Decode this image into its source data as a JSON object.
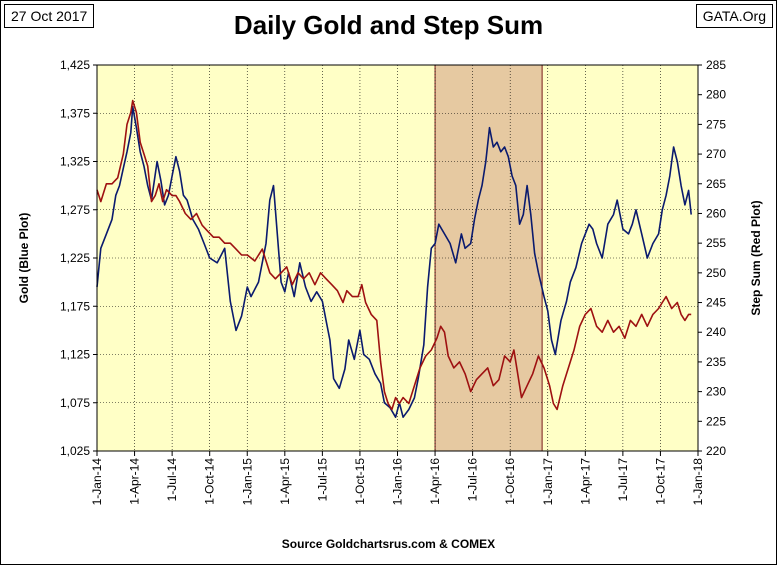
{
  "header": {
    "date": "27 Oct 2017",
    "brand": "GATA.Org",
    "title": "Daily Gold and Step Sum",
    "source": "Source Goldchartsrus.com & COMEX"
  },
  "colors": {
    "plot_bg": "#ffffc6",
    "highlight": "#e6c9a1",
    "gold_line": "#0a1a6e",
    "step_line": "#9e1111",
    "grid": "#000000"
  },
  "chart_data": {
    "type": "line",
    "title": "Daily Gold and Step Sum",
    "x_tick_labels": [
      "1-Jan-14",
      "1-Apr-14",
      "1-Jul-14",
      "1-Oct-14",
      "1-Jan-15",
      "1-Apr-15",
      "1-Jul-15",
      "1-Oct-15",
      "1-Jan-16",
      "1-Apr-16",
      "1-Jul-16",
      "1-Oct-16",
      "1-Jan-17",
      "1-Apr-17",
      "1-Jul-17",
      "1-Oct-17",
      "1-Jan-18"
    ],
    "x_range": [
      0,
      16
    ],
    "y_left": {
      "label": "Gold   (Blue Plot)",
      "range": [
        1025,
        1425
      ],
      "ticks": [
        1025,
        1075,
        1125,
        1175,
        1225,
        1275,
        1325,
        1375,
        1425
      ],
      "tick_labels": [
        "1,025",
        "1,075",
        "1,125",
        "1,175",
        "1,225",
        "1,275",
        "1,325",
        "1,375",
        "1,425"
      ]
    },
    "y_right": {
      "label": "Step Sum   (Red Plot)",
      "range": [
        220,
        285
      ],
      "ticks": [
        220,
        225,
        230,
        235,
        240,
        245,
        250,
        255,
        260,
        265,
        270,
        275,
        280,
        285
      ],
      "tick_labels": [
        "220",
        "225",
        "230",
        "235",
        "240",
        "245",
        "250",
        "255",
        "260",
        "265",
        "270",
        "275",
        "280",
        "285"
      ]
    },
    "highlight_x_range": [
      9.0,
      11.85
    ],
    "series": [
      {
        "name": "Gold",
        "axis": "left",
        "points": [
          [
            0,
            1195
          ],
          [
            0.1,
            1235
          ],
          [
            0.25,
            1250
          ],
          [
            0.4,
            1265
          ],
          [
            0.5,
            1290
          ],
          [
            0.6,
            1300
          ],
          [
            0.7,
            1318
          ],
          [
            0.8,
            1335
          ],
          [
            0.9,
            1355
          ],
          [
            0.95,
            1382
          ],
          [
            1.05,
            1360
          ],
          [
            1.15,
            1335
          ],
          [
            1.25,
            1320
          ],
          [
            1.35,
            1300
          ],
          [
            1.45,
            1285
          ],
          [
            1.6,
            1325
          ],
          [
            1.7,
            1305
          ],
          [
            1.8,
            1280
          ],
          [
            1.9,
            1290
          ],
          [
            2.0,
            1310
          ],
          [
            2.1,
            1330
          ],
          [
            2.2,
            1315
          ],
          [
            2.3,
            1290
          ],
          [
            2.4,
            1285
          ],
          [
            2.55,
            1265
          ],
          [
            2.7,
            1255
          ],
          [
            2.85,
            1240
          ],
          [
            3.0,
            1225
          ],
          [
            3.2,
            1220
          ],
          [
            3.4,
            1235
          ],
          [
            3.55,
            1180
          ],
          [
            3.7,
            1150
          ],
          [
            3.85,
            1165
          ],
          [
            4.0,
            1195
          ],
          [
            4.1,
            1185
          ],
          [
            4.3,
            1200
          ],
          [
            4.5,
            1240
          ],
          [
            4.6,
            1285
          ],
          [
            4.7,
            1300
          ],
          [
            4.8,
            1250
          ],
          [
            4.9,
            1200
          ],
          [
            5.0,
            1190
          ],
          [
            5.1,
            1210
          ],
          [
            5.25,
            1185
          ],
          [
            5.4,
            1220
          ],
          [
            5.55,
            1195
          ],
          [
            5.7,
            1180
          ],
          [
            5.85,
            1190
          ],
          [
            6.0,
            1180
          ],
          [
            6.1,
            1160
          ],
          [
            6.2,
            1140
          ],
          [
            6.3,
            1100
          ],
          [
            6.45,
            1090
          ],
          [
            6.6,
            1110
          ],
          [
            6.7,
            1140
          ],
          [
            6.85,
            1120
          ],
          [
            7.0,
            1150
          ],
          [
            7.1,
            1125
          ],
          [
            7.25,
            1120
          ],
          [
            7.4,
            1105
          ],
          [
            7.55,
            1095
          ],
          [
            7.65,
            1075
          ],
          [
            7.8,
            1070
          ],
          [
            7.95,
            1060
          ],
          [
            8.05,
            1075
          ],
          [
            8.15,
            1060
          ],
          [
            8.3,
            1068
          ],
          [
            8.45,
            1080
          ],
          [
            8.55,
            1100
          ],
          [
            8.7,
            1135
          ],
          [
            8.8,
            1195
          ],
          [
            8.9,
            1235
          ],
          [
            9.0,
            1240
          ],
          [
            9.1,
            1260
          ],
          [
            9.25,
            1250
          ],
          [
            9.4,
            1240
          ],
          [
            9.55,
            1220
          ],
          [
            9.7,
            1250
          ],
          [
            9.8,
            1235
          ],
          [
            9.95,
            1240
          ],
          [
            10.05,
            1265
          ],
          [
            10.15,
            1285
          ],
          [
            10.25,
            1300
          ],
          [
            10.35,
            1325
          ],
          [
            10.45,
            1360
          ],
          [
            10.55,
            1340
          ],
          [
            10.65,
            1345
          ],
          [
            10.75,
            1335
          ],
          [
            10.85,
            1340
          ],
          [
            10.95,
            1330
          ],
          [
            11.05,
            1310
          ],
          [
            11.15,
            1300
          ],
          [
            11.25,
            1260
          ],
          [
            11.35,
            1270
          ],
          [
            11.45,
            1300
          ],
          [
            11.55,
            1270
          ],
          [
            11.65,
            1230
          ],
          [
            11.75,
            1210
          ],
          [
            11.9,
            1185
          ],
          [
            12.0,
            1170
          ],
          [
            12.1,
            1140
          ],
          [
            12.2,
            1125
          ],
          [
            12.35,
            1160
          ],
          [
            12.5,
            1180
          ],
          [
            12.6,
            1200
          ],
          [
            12.75,
            1215
          ],
          [
            12.9,
            1240
          ],
          [
            13.0,
            1250
          ],
          [
            13.1,
            1260
          ],
          [
            13.2,
            1255
          ],
          [
            13.3,
            1240
          ],
          [
            13.45,
            1225
          ],
          [
            13.6,
            1260
          ],
          [
            13.75,
            1270
          ],
          [
            13.85,
            1285
          ],
          [
            14.0,
            1255
          ],
          [
            14.15,
            1250
          ],
          [
            14.25,
            1260
          ],
          [
            14.35,
            1275
          ],
          [
            14.5,
            1250
          ],
          [
            14.65,
            1225
          ],
          [
            14.8,
            1240
          ],
          [
            14.95,
            1250
          ],
          [
            15.05,
            1275
          ],
          [
            15.15,
            1290
          ],
          [
            15.25,
            1310
          ],
          [
            15.35,
            1340
          ],
          [
            15.45,
            1325
          ],
          [
            15.55,
            1300
          ],
          [
            15.65,
            1280
          ],
          [
            15.75,
            1295
          ],
          [
            15.82,
            1270
          ]
        ]
      },
      {
        "name": "Step Sum",
        "axis": "right",
        "points": [
          [
            0,
            264
          ],
          [
            0.1,
            262
          ],
          [
            0.25,
            265
          ],
          [
            0.4,
            265
          ],
          [
            0.55,
            266
          ],
          [
            0.7,
            270
          ],
          [
            0.8,
            275
          ],
          [
            0.9,
            277
          ],
          [
            0.95,
            279
          ],
          [
            1.05,
            277
          ],
          [
            1.15,
            272
          ],
          [
            1.25,
            270
          ],
          [
            1.35,
            268
          ],
          [
            1.45,
            262
          ],
          [
            1.55,
            263
          ],
          [
            1.65,
            265
          ],
          [
            1.75,
            262
          ],
          [
            1.85,
            264
          ],
          [
            2.0,
            263
          ],
          [
            2.1,
            263
          ],
          [
            2.2,
            262
          ],
          [
            2.35,
            260
          ],
          [
            2.5,
            259
          ],
          [
            2.65,
            260
          ],
          [
            2.8,
            258
          ],
          [
            2.95,
            257
          ],
          [
            3.1,
            256
          ],
          [
            3.25,
            256
          ],
          [
            3.4,
            255
          ],
          [
            3.55,
            255
          ],
          [
            3.7,
            254
          ],
          [
            3.85,
            253
          ],
          [
            4.0,
            253
          ],
          [
            4.2,
            252
          ],
          [
            4.4,
            254
          ],
          [
            4.6,
            250
          ],
          [
            4.75,
            249
          ],
          [
            4.9,
            250
          ],
          [
            5.05,
            251
          ],
          [
            5.2,
            248
          ],
          [
            5.35,
            250
          ],
          [
            5.5,
            249
          ],
          [
            5.65,
            250
          ],
          [
            5.8,
            248
          ],
          [
            5.95,
            250
          ],
          [
            6.1,
            249
          ],
          [
            6.25,
            248
          ],
          [
            6.4,
            247
          ],
          [
            6.55,
            245
          ],
          [
            6.65,
            247
          ],
          [
            6.8,
            246
          ],
          [
            6.95,
            246
          ],
          [
            7.05,
            248
          ],
          [
            7.15,
            245
          ],
          [
            7.3,
            243
          ],
          [
            7.45,
            242
          ],
          [
            7.55,
            235
          ],
          [
            7.65,
            230
          ],
          [
            7.75,
            228
          ],
          [
            7.85,
            227
          ],
          [
            7.95,
            229
          ],
          [
            8.05,
            228
          ],
          [
            8.15,
            229
          ],
          [
            8.3,
            228
          ],
          [
            8.45,
            231
          ],
          [
            8.6,
            234
          ],
          [
            8.75,
            236
          ],
          [
            8.9,
            237
          ],
          [
            9.05,
            239
          ],
          [
            9.15,
            241
          ],
          [
            9.25,
            240
          ],
          [
            9.35,
            236
          ],
          [
            9.5,
            234
          ],
          [
            9.65,
            235
          ],
          [
            9.8,
            233
          ],
          [
            9.95,
            230
          ],
          [
            10.1,
            232
          ],
          [
            10.25,
            233
          ],
          [
            10.4,
            234
          ],
          [
            10.55,
            231
          ],
          [
            10.7,
            232
          ],
          [
            10.85,
            236
          ],
          [
            11.0,
            235
          ],
          [
            11.1,
            237
          ],
          [
            11.2,
            233
          ],
          [
            11.3,
            229
          ],
          [
            11.45,
            231
          ],
          [
            11.6,
            233
          ],
          [
            11.75,
            236
          ],
          [
            11.9,
            234
          ],
          [
            12.05,
            231
          ],
          [
            12.15,
            228
          ],
          [
            12.25,
            227
          ],
          [
            12.4,
            231
          ],
          [
            12.55,
            234
          ],
          [
            12.7,
            237
          ],
          [
            12.85,
            241
          ],
          [
            13.0,
            243
          ],
          [
            13.15,
            244
          ],
          [
            13.3,
            241
          ],
          [
            13.45,
            240
          ],
          [
            13.6,
            242
          ],
          [
            13.75,
            240
          ],
          [
            13.9,
            241
          ],
          [
            14.05,
            239
          ],
          [
            14.2,
            242
          ],
          [
            14.35,
            241
          ],
          [
            14.5,
            243
          ],
          [
            14.65,
            241
          ],
          [
            14.8,
            243
          ],
          [
            14.95,
            244
          ],
          [
            15.05,
            245
          ],
          [
            15.15,
            246
          ],
          [
            15.3,
            244
          ],
          [
            15.45,
            245
          ],
          [
            15.55,
            243
          ],
          [
            15.65,
            242
          ],
          [
            15.75,
            243
          ],
          [
            15.82,
            243
          ]
        ]
      }
    ]
  }
}
